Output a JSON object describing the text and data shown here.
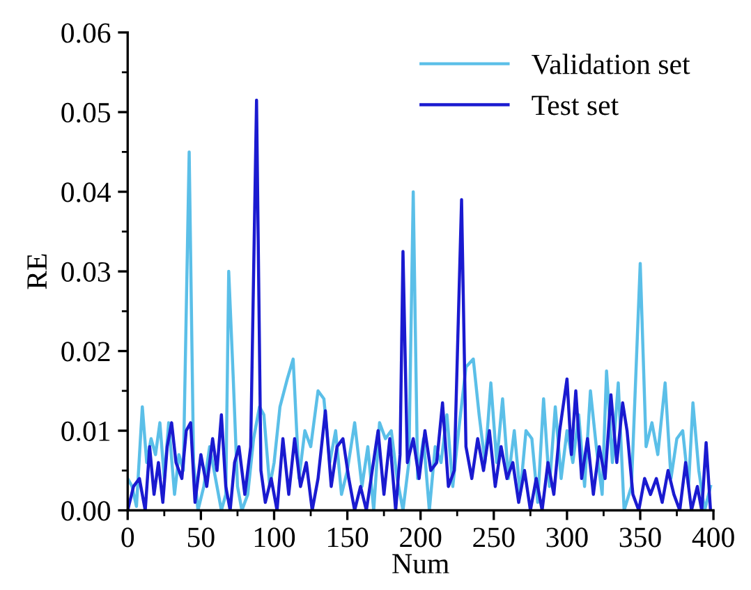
{
  "chart_data": {
    "type": "line",
    "xlabel": "Num",
    "ylabel": "RE",
    "xlim": [
      0,
      400
    ],
    "xticks": [
      0,
      50,
      100,
      150,
      200,
      250,
      300,
      350,
      400
    ],
    "ylim": [
      0,
      0.06
    ],
    "yticks": [
      {
        "value": 0,
        "label": "0.00"
      },
      {
        "value": 0.01,
        "label": "0.01"
      },
      {
        "value": 0.02,
        "label": "0.02"
      },
      {
        "value": 0.03,
        "label": "0.03"
      },
      {
        "value": 0.04,
        "label": "0.04"
      },
      {
        "value": 0.05,
        "label": "0.05"
      },
      {
        "value": 0.06,
        "label": "0.06"
      }
    ],
    "grid": false,
    "legend": "top right",
    "line_style": "solid",
    "marker": "none",
    "series": [
      {
        "name": "Validation set",
        "color": "#5bbfe8",
        "x": [
          0,
          3,
          6,
          10,
          13,
          16,
          19,
          22,
          25,
          28,
          32,
          35,
          38,
          42,
          45,
          48,
          52,
          56,
          60,
          64,
          67,
          69,
          72,
          75,
          78,
          82,
          86,
          90,
          93,
          97,
          100,
          104,
          109,
          113,
          117,
          121,
          125,
          130,
          134,
          138,
          142,
          146,
          150,
          155,
          160,
          164,
          168,
          172,
          176,
          180,
          184,
          188,
          192,
          195,
          198,
          202,
          206,
          210,
          214,
          218,
          222,
          226,
          231,
          236,
          240,
          244,
          248,
          252,
          256,
          260,
          264,
          268,
          272,
          276,
          280,
          284,
          288,
          292,
          296,
          300,
          304,
          308,
          312,
          316,
          320,
          324,
          327,
          331,
          335,
          339,
          344,
          350,
          354,
          358,
          362,
          367,
          371,
          375,
          379,
          383,
          386,
          390,
          394,
          398
        ],
        "values": [
          0.004,
          0.003,
          0.0005,
          0.013,
          0.006,
          0.009,
          0.007,
          0.011,
          0.004,
          0.011,
          0.002,
          0.007,
          0.005,
          0.045,
          0.006,
          0.0,
          0.003,
          0.008,
          0.004,
          0.0,
          0.002,
          0.03,
          0.017,
          0.003,
          0.0,
          0.002,
          0.009,
          0.013,
          0.012,
          0.003,
          0.006,
          0.013,
          0.0165,
          0.019,
          0.004,
          0.01,
          0.008,
          0.015,
          0.014,
          0.006,
          0.01,
          0.002,
          0.005,
          0.011,
          0.003,
          0.008,
          0.0,
          0.011,
          0.009,
          0.01,
          0.004,
          0.0,
          0.006,
          0.04,
          0.004,
          0.009,
          0.0,
          0.008,
          0.006,
          0.012,
          0.003,
          0.01,
          0.018,
          0.019,
          0.012,
          0.006,
          0.016,
          0.006,
          0.014,
          0.004,
          0.01,
          0.002,
          0.01,
          0.009,
          0.001,
          0.014,
          0.003,
          0.013,
          0.004,
          0.01,
          0.006,
          0.012,
          0.003,
          0.015,
          0.008,
          0.002,
          0.0175,
          0.006,
          0.016,
          0.0,
          0.003,
          0.031,
          0.008,
          0.011,
          0.007,
          0.016,
          0.004,
          0.009,
          0.01,
          0.003,
          0.0135,
          0.005,
          0.0,
          0.003
        ]
      },
      {
        "name": "Test set",
        "color": "#1a1ad0",
        "x": [
          0,
          4,
          8,
          12,
          15,
          18,
          21,
          24,
          27,
          30,
          33,
          37,
          40,
          43,
          46,
          50,
          54,
          58,
          61,
          64,
          67,
          70,
          73,
          76,
          80,
          84,
          88,
          91,
          94,
          98,
          102,
          106,
          110,
          114,
          118,
          122,
          126,
          130,
          135,
          139,
          143,
          147,
          151,
          155,
          159,
          163,
          167,
          171,
          175,
          179,
          183,
          186,
          188,
          191,
          195,
          199,
          203,
          207,
          211,
          215,
          219,
          223,
          228,
          231,
          235,
          239,
          243,
          247,
          251,
          255,
          259,
          263,
          267,
          271,
          275,
          279,
          283,
          287,
          291,
          295,
          300,
          303,
          306,
          310,
          314,
          318,
          322,
          326,
          330,
          334,
          338,
          341,
          345,
          349,
          353,
          357,
          361,
          365,
          369,
          373,
          377,
          381,
          385,
          389,
          392,
          395,
          398
        ],
        "values": [
          0.0,
          0.003,
          0.004,
          0.0,
          0.008,
          0.002,
          0.006,
          0.001,
          0.008,
          0.011,
          0.006,
          0.004,
          0.01,
          0.011,
          0.001,
          0.007,
          0.003,
          0.009,
          0.005,
          0.012,
          0.003,
          0.0,
          0.006,
          0.008,
          0.002,
          0.008,
          0.0515,
          0.005,
          0.001,
          0.004,
          0.0,
          0.009,
          0.002,
          0.009,
          0.003,
          0.006,
          0.0,
          0.004,
          0.0125,
          0.003,
          0.008,
          0.009,
          0.004,
          0.0,
          0.003,
          0.0,
          0.005,
          0.01,
          0.002,
          0.009,
          0.0,
          0.007,
          0.0325,
          0.006,
          0.009,
          0.004,
          0.01,
          0.005,
          0.006,
          0.0135,
          0.003,
          0.005,
          0.039,
          0.008,
          0.004,
          0.009,
          0.005,
          0.01,
          0.003,
          0.008,
          0.004,
          0.006,
          0.001,
          0.005,
          0.0,
          0.004,
          0.0,
          0.006,
          0.002,
          0.01,
          0.0165,
          0.007,
          0.015,
          0.004,
          0.009,
          0.002,
          0.008,
          0.004,
          0.0145,
          0.006,
          0.0135,
          0.01,
          0.002,
          0.0,
          0.004,
          0.002,
          0.004,
          0.001,
          0.005,
          0.002,
          0.0,
          0.006,
          0.0,
          0.003,
          0.0,
          0.0085,
          0.0
        ]
      }
    ]
  }
}
